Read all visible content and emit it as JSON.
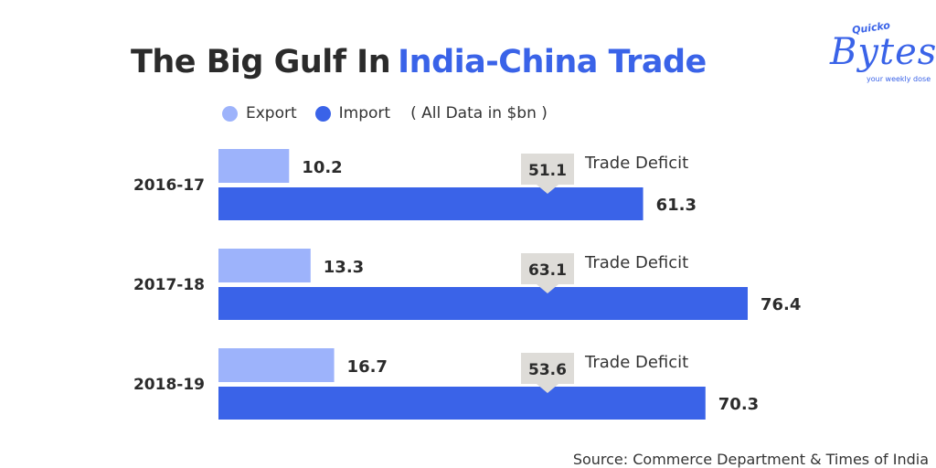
{
  "title": {
    "part1": "The Big Gulf In",
    "part2": "India-China Trade"
  },
  "logo": {
    "small": "Quicko",
    "big": "Bytes",
    "tagline": "your weekly dose"
  },
  "legend": {
    "export": "Export",
    "import": "Import",
    "note": "( All Data in $bn )"
  },
  "source": "Source: Commerce Department & Times of India",
  "colors": {
    "export": "#9db3fb",
    "import": "#3a63e8",
    "callout": "#dedcd8",
    "title_accent": "#3a63e8"
  },
  "chart_data": {
    "type": "bar",
    "orientation": "horizontal",
    "categories": [
      "2016-17",
      "2017-18",
      "2018-19"
    ],
    "series": [
      {
        "name": "Export",
        "values": [
          10.2,
          13.3,
          16.7
        ]
      },
      {
        "name": "Import",
        "values": [
          61.3,
          76.4,
          70.3
        ]
      }
    ],
    "trade_deficit": {
      "label": "Trade Deficit",
      "values": [
        51.1,
        63.1,
        53.6
      ]
    },
    "value_labels": {
      "export": [
        "10.2",
        "13.3",
        "16.7"
      ],
      "import": [
        "61.3",
        "76.4",
        "70.3"
      ],
      "deficit": [
        "51.1",
        "63.1",
        "53.6"
      ]
    },
    "xlim": [
      0,
      80
    ],
    "grid": false,
    "legend_position": "top-left"
  }
}
